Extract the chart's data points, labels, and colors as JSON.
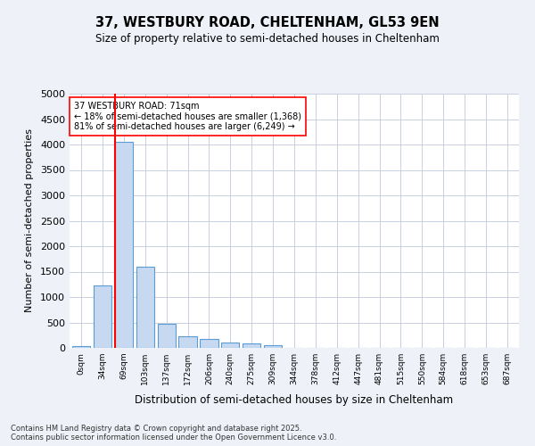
{
  "title1": "37, WESTBURY ROAD, CHELTENHAM, GL53 9EN",
  "title2": "Size of property relative to semi-detached houses in Cheltenham",
  "xlabel": "Distribution of semi-detached houses by size in Cheltenham",
  "ylabel": "Number of semi-detached properties",
  "footer": "Contains HM Land Registry data © Crown copyright and database right 2025.\nContains public sector information licensed under the Open Government Licence v3.0.",
  "bins": [
    "0sqm",
    "34sqm",
    "69sqm",
    "103sqm",
    "137sqm",
    "172sqm",
    "206sqm",
    "240sqm",
    "275sqm",
    "309sqm",
    "344sqm",
    "378sqm",
    "412sqm",
    "447sqm",
    "481sqm",
    "515sqm",
    "550sqm",
    "584sqm",
    "618sqm",
    "653sqm",
    "687sqm"
  ],
  "values": [
    30,
    1220,
    4050,
    1600,
    470,
    220,
    170,
    110,
    90,
    55,
    0,
    0,
    0,
    0,
    0,
    0,
    0,
    0,
    0,
    0,
    0
  ],
  "bar_color": "#c6d9f0",
  "bar_edge_color": "#5b9bd5",
  "property_line_color": "red",
  "annotation_text": "37 WESTBURY ROAD: 71sqm\n← 18% of semi-detached houses are smaller (1,368)\n81% of semi-detached houses are larger (6,249) →",
  "annotation_box_color": "white",
  "annotation_box_edge": "red",
  "ylim": [
    0,
    5000
  ],
  "yticks": [
    0,
    500,
    1000,
    1500,
    2000,
    2500,
    3000,
    3500,
    4000,
    4500,
    5000
  ],
  "background_color": "#eef2f8",
  "plot_background": "white",
  "grid_color": "#c8d0e0"
}
